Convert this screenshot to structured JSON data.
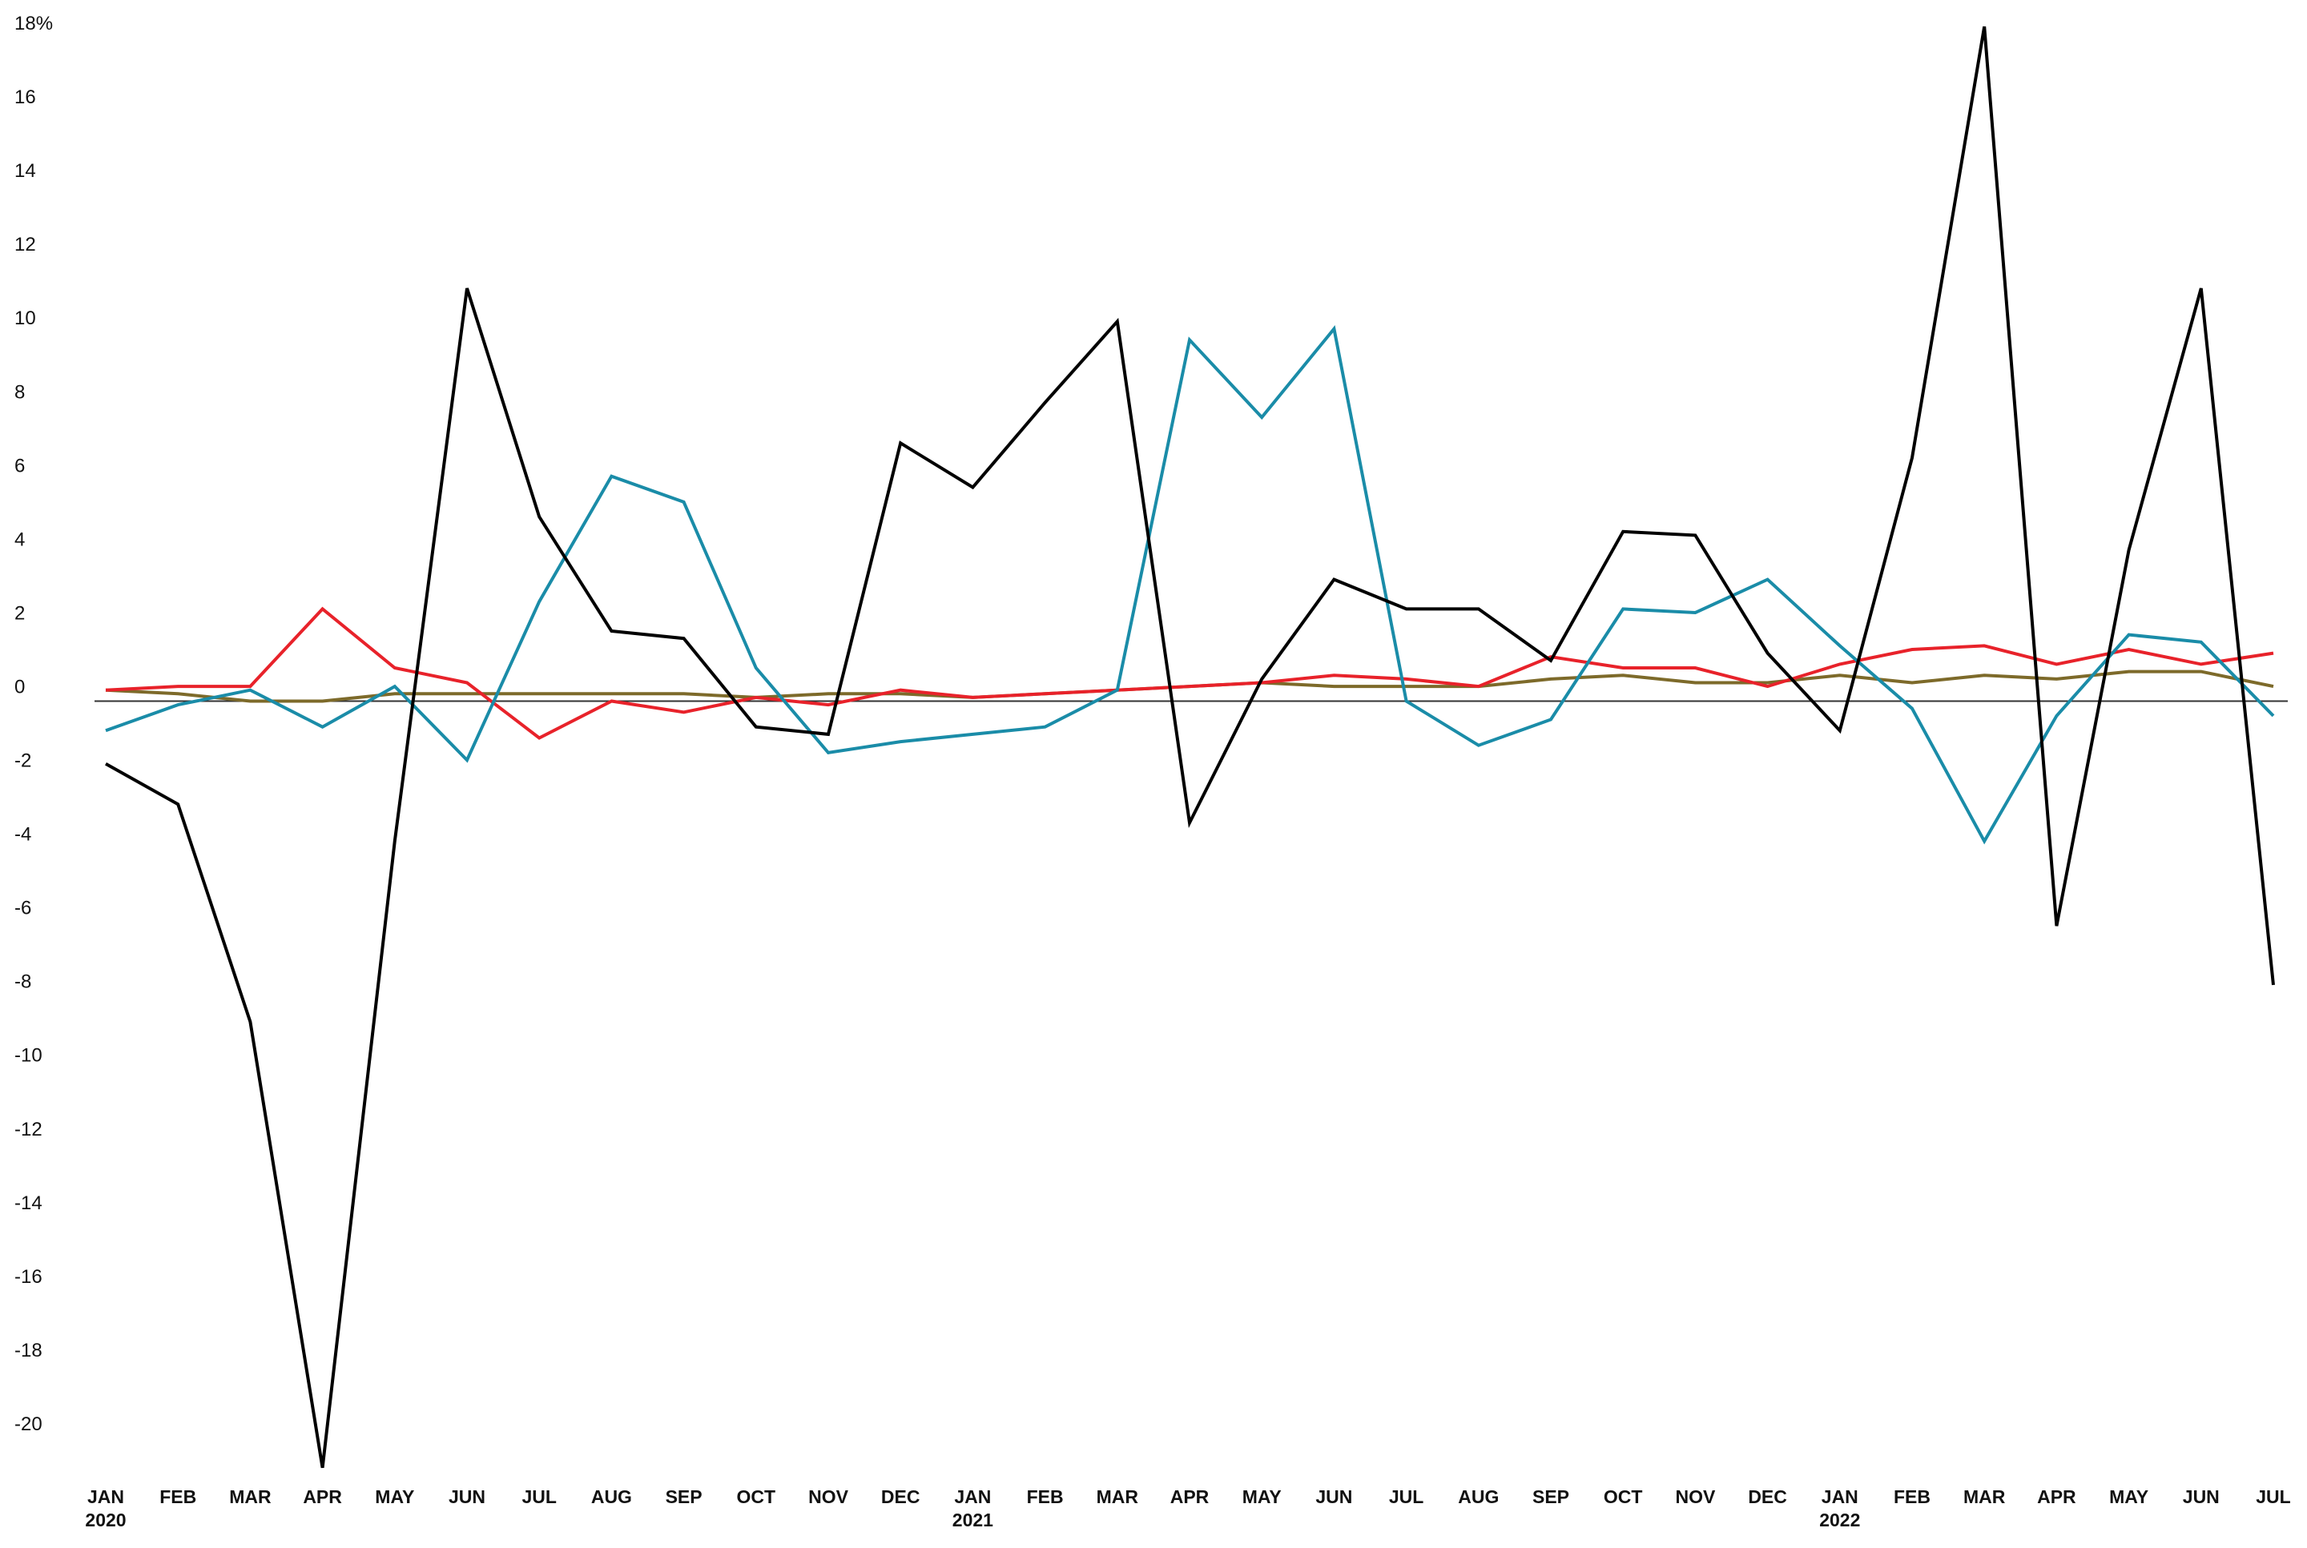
{
  "chart_data": {
    "type": "line",
    "categories": [
      "JAN 2020",
      "FEB",
      "MAR",
      "APR",
      "MAY",
      "JUN",
      "JUL",
      "AUG",
      "SEP",
      "OCT",
      "NOV",
      "DEC",
      "JAN 2021",
      "FEB",
      "MAR",
      "APR",
      "MAY",
      "JUN",
      "JUL",
      "AUG",
      "SEP",
      "OCT",
      "NOV",
      "DEC",
      "JAN 2022",
      "FEB",
      "MAR",
      "APR",
      "MAY",
      "JUN",
      "JUL"
    ],
    "series": [
      {
        "color": "#7d6a2a",
        "values": [
          0.3,
          0.2,
          0.0,
          0,
          0.2,
          0.2,
          0.2,
          0.2,
          0.2,
          0.1,
          0.2,
          0.2,
          0.1,
          0.2,
          0.3,
          0.4,
          0.5,
          0.4,
          0.4,
          0.4,
          0.6,
          0.7,
          0.5,
          0.5,
          0.7,
          0.5,
          0.7,
          0.6,
          0.8,
          0.8,
          0.4
        ]
      },
      {
        "color": "#e8222a",
        "values": [
          0.3,
          0.4,
          0.4,
          2.5,
          0.9,
          0.5,
          -1.0,
          0,
          -0.3,
          0.1,
          -0.1,
          0.3,
          0.1,
          0.2,
          0.3,
          0.4,
          0.5,
          0.7,
          0.6,
          0.4,
          1.2,
          0.9,
          0.9,
          0.4,
          1.0,
          1.4,
          1.5,
          1.0,
          1.4,
          1.0,
          1.3
        ]
      },
      {
        "color": "#1a8ca8",
        "values": [
          -0.8,
          -0.1,
          0.3,
          -0.7,
          0.4,
          -1.6,
          2.7,
          6.1,
          5.4,
          0.9,
          -1.4,
          -1.1,
          -0.9,
          -0.7,
          0.3,
          9.8,
          7.7,
          10.1,
          0,
          -1.2,
          -0.5,
          2.5,
          2.4,
          3.3,
          1.5,
          -0.2,
          -3.8,
          -0.4,
          1.8,
          1.6,
          -0.4
        ]
      },
      {
        "color": "#000000",
        "values": [
          -1.7,
          -2.8,
          -8.7,
          -20.8,
          -3.8,
          11.2,
          5.0,
          1.9,
          1.7,
          -0.7,
          -0.9,
          7.0,
          5.8,
          8.1,
          10.3,
          -3.3,
          0.6,
          3.3,
          2.5,
          2.5,
          1.1,
          4.6,
          4.5,
          1.3,
          -0.8,
          6.6,
          18.3,
          -6.1,
          4.1,
          11.2,
          -7.7
        ]
      }
    ],
    "ylim": [
      -21,
      18.5
    ],
    "yticks": [
      -20,
      -18,
      -16,
      -14,
      -12,
      -10,
      -8,
      -6,
      -4,
      -2,
      0,
      2,
      4,
      6,
      8,
      10,
      12,
      14,
      16,
      {
        "value": 18,
        "label": "18%"
      }
    ],
    "grid": false
  }
}
